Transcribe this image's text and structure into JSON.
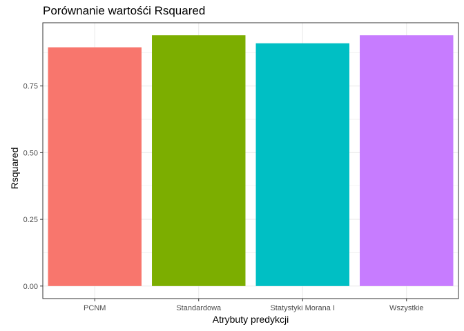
{
  "chart_data": {
    "type": "bar",
    "title": "Porównanie wartośći Rsquared",
    "xlabel": "Atrybuty predykcji",
    "ylabel": "Rsquared",
    "categories": [
      "PCNM",
      "Standardowa",
      "Statystyki Morana I",
      "Wszystkie"
    ],
    "values": [
      0.895,
      0.94,
      0.91,
      0.94
    ],
    "colors": [
      "#F8766D",
      "#7CAE00",
      "#00BFC4",
      "#C77CFF"
    ],
    "yticks": [
      0.0,
      0.25,
      0.5,
      0.75
    ],
    "ytick_labels": [
      "0.00",
      "0.25",
      "0.50",
      "0.75"
    ],
    "ylim": [
      -0.047,
      0.987
    ],
    "grid": true,
    "legend": "none"
  }
}
